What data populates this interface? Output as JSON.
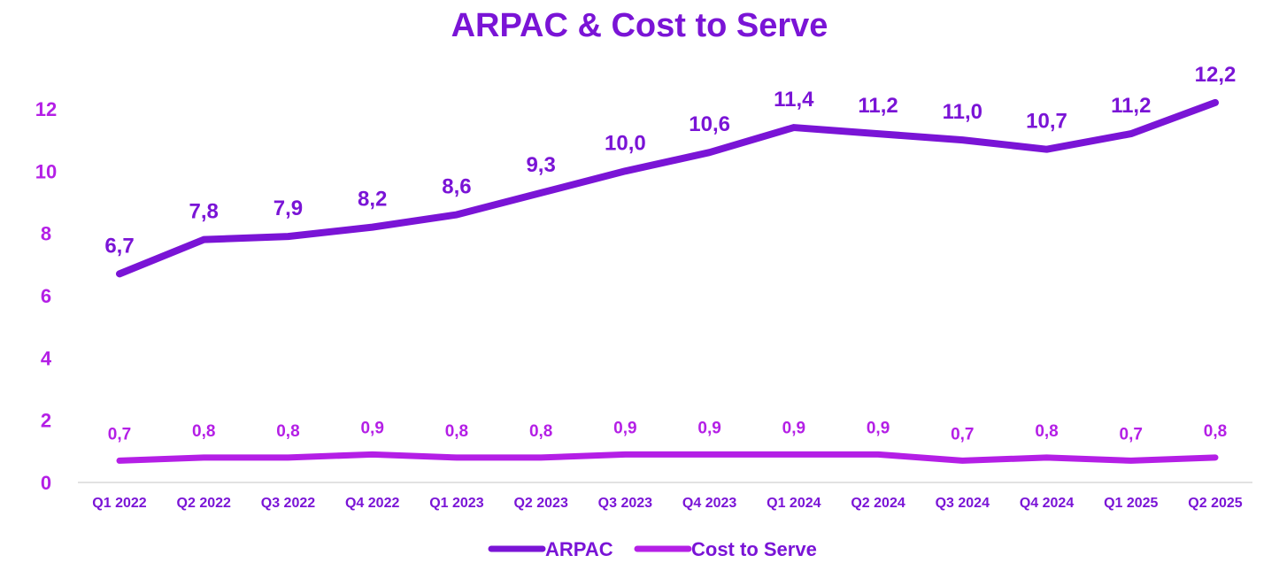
{
  "chart_data": {
    "type": "line",
    "title": "ARPAC & Cost to Serve",
    "xlabel": "",
    "ylabel": "",
    "categories": [
      "Q1 2022",
      "Q2 2022",
      "Q3 2022",
      "Q4 2022",
      "Q1 2023",
      "Q2 2023",
      "Q3 2023",
      "Q4 2023",
      "Q1 2024",
      "Q2 2024",
      "Q3 2024",
      "Q4 2024",
      "Q1 2025",
      "Q2 2025"
    ],
    "ylim": [
      0,
      13
    ],
    "yticks": [
      "0",
      "2",
      "4",
      "6",
      "8",
      "10",
      "12"
    ],
    "grid": false,
    "legend_position": "bottom",
    "series": [
      {
        "name": "ARPAC",
        "color": "#7a14d6",
        "values": [
          6.7,
          7.8,
          7.9,
          8.2,
          8.6,
          9.3,
          10.0,
          10.6,
          11.4,
          11.2,
          11.0,
          10.7,
          11.2,
          12.2
        ],
        "labels": [
          "6,7",
          "7,8",
          "7,9",
          "8,2",
          "8,6",
          "9,3",
          "10,0",
          "10,6",
          "11,4",
          "11,2",
          "11,0",
          "10,7",
          "11,2",
          "12,2"
        ]
      },
      {
        "name": "Cost to Serve",
        "color": "#b41fe6",
        "values": [
          0.7,
          0.8,
          0.8,
          0.9,
          0.8,
          0.8,
          0.9,
          0.9,
          0.9,
          0.9,
          0.7,
          0.8,
          0.7,
          0.8
        ],
        "labels": [
          "0,7",
          "0,8",
          "0,8",
          "0,9",
          "0,8",
          "0,8",
          "0,9",
          "0,9",
          "0,9",
          "0,9",
          "0,7",
          "0,8",
          "0,7",
          "0,8"
        ]
      }
    ],
    "colors": {
      "title": "#7a14d6",
      "y_tick_labels": "#b41fe6",
      "x_tick_labels": "#7a14d6",
      "axis_line": "#d9d9d9"
    }
  }
}
